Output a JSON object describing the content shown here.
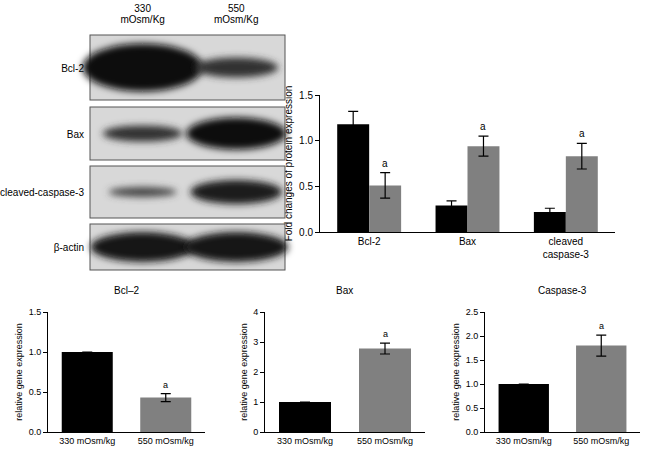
{
  "blot": {
    "lanes": [
      "330 mOsm/Kg",
      "550 mOsm/Kg"
    ],
    "rows": [
      "Bcl-2",
      "Bax",
      "cleaved-caspase-3",
      "β-actin"
    ]
  },
  "chart_data": [
    {
      "type": "bar",
      "y_label": "Fold changes of protein expression",
      "categories": [
        "Bcl-2",
        "Bax",
        "cleaved caspase-3"
      ],
      "series": [
        {
          "color": "#000000",
          "values": [
            1.18,
            0.29,
            0.22
          ],
          "errors": [
            0.14,
            0.05,
            0.04
          ]
        },
        {
          "color": "#808080",
          "values": [
            0.51,
            0.94,
            0.83
          ],
          "errors": [
            0.14,
            0.11,
            0.14
          ],
          "annotations": [
            "a",
            "a",
            "a"
          ]
        }
      ],
      "ylim": [
        0,
        1.5
      ],
      "yticks": [
        {
          "value": 0,
          "label": "0.0"
        },
        0.5,
        {
          "value": 1,
          "label": "1.0"
        },
        1.5
      ]
    },
    {
      "type": "bar",
      "title": "Bcl–2",
      "y_label": "relative gene expression",
      "categories": [
        "330 mOsm/kg",
        "550 mOsm/kg"
      ],
      "series": [
        {
          "colors": [
            "#000000",
            "#808080"
          ],
          "values": [
            1.0,
            0.43
          ],
          "errors": [
            0,
            0.05
          ],
          "annotations": [
            null,
            "a"
          ]
        }
      ],
      "ylim": [
        0,
        1.5
      ],
      "yticks": [
        {
          "value": 0,
          "label": "0.0"
        },
        0.5,
        {
          "value": 1,
          "label": "1.0"
        },
        1.5
      ]
    },
    {
      "type": "bar",
      "title": "Bax",
      "y_label": "relative gene expression",
      "categories": [
        "330 mOsm/kg",
        "550 mOsm/kg"
      ],
      "series": [
        {
          "colors": [
            "#000000",
            "#808080"
          ],
          "values": [
            1.0,
            2.78
          ],
          "errors": [
            0,
            0.18
          ],
          "annotations": [
            null,
            "a"
          ]
        }
      ],
      "ylim": [
        0,
        4
      ],
      "yticks": [
        0,
        1,
        2,
        3,
        4
      ]
    },
    {
      "type": "bar",
      "title": "Caspase-3",
      "y_label": "relative gene expression",
      "categories": [
        "330 mOsm/kg",
        "550 mOsm/kg"
      ],
      "series": [
        {
          "colors": [
            "#000000",
            "#808080"
          ],
          "values": [
            1.0,
            1.8
          ],
          "errors": [
            0,
            0.22
          ],
          "annotations": [
            null,
            "a"
          ]
        }
      ],
      "ylim": [
        0,
        2.5
      ],
      "yticks": [
        {
          "value": 0,
          "label": "0.0"
        },
        0.5,
        {
          "value": 1,
          "label": "1.0"
        },
        1.5,
        {
          "value": 2,
          "label": "2.0"
        },
        2.5
      ]
    }
  ]
}
